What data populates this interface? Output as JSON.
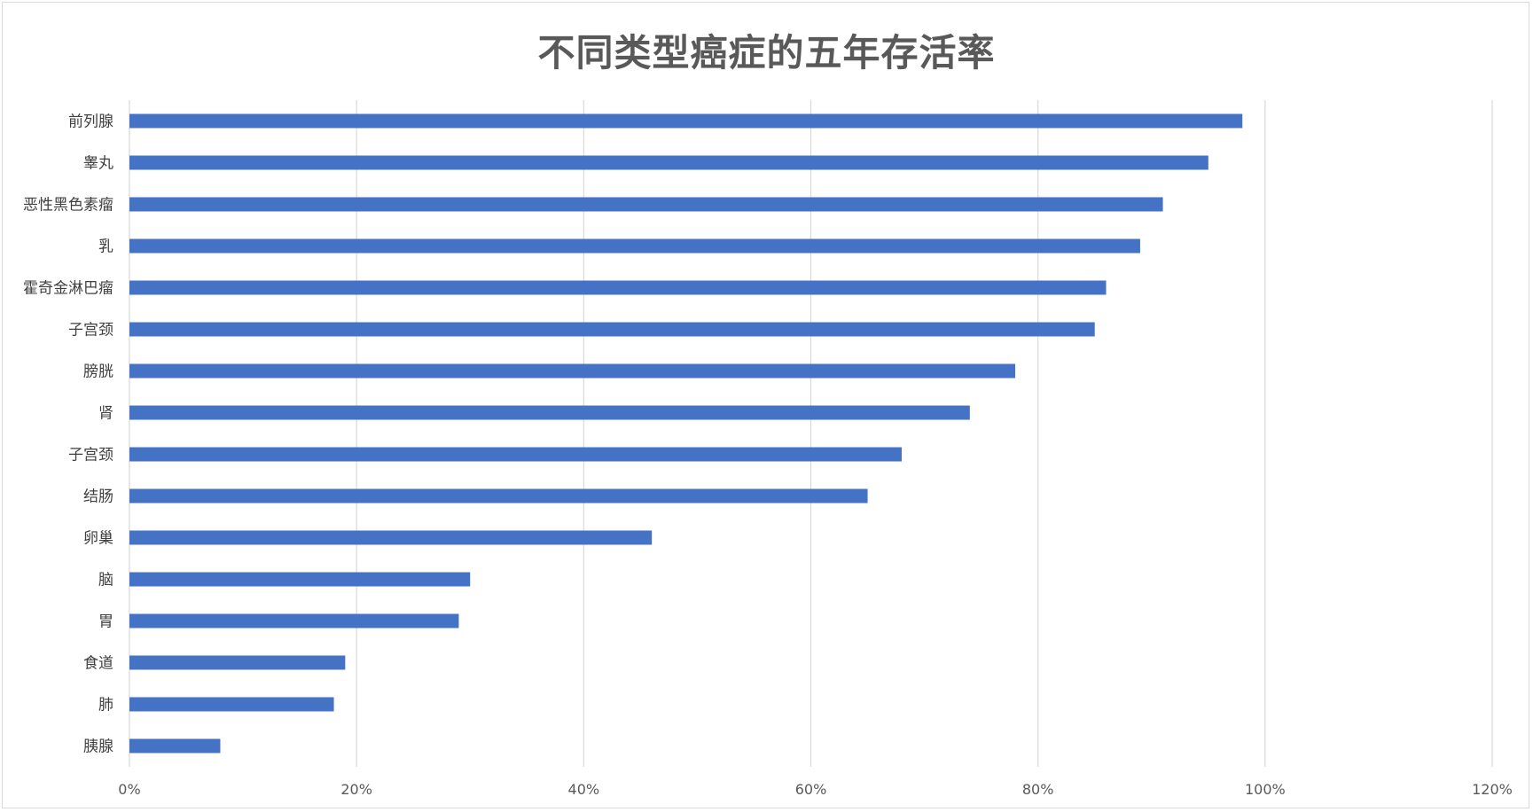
{
  "chart_data": {
    "type": "bar",
    "orientation": "horizontal",
    "title": "不同类型癌症的五年存活率",
    "categories": [
      "前列腺",
      "睾丸",
      "恶性黑色素瘤",
      "乳",
      "霍奇金淋巴瘤",
      "子宫颈",
      "膀胱",
      "肾",
      "子宫颈",
      "结肠",
      "卵巢",
      "脑",
      "胃",
      "食道",
      "肺",
      "胰腺"
    ],
    "series": [
      {
        "values": [
          0.98,
          0.95,
          0.91,
          0.89,
          0.86,
          0.85,
          0.78,
          0.74,
          0.68,
          0.65,
          0.46,
          0.3,
          0.29,
          0.19,
          0.18,
          0.08
        ]
      }
    ],
    "x_ticks": [
      "0%",
      "20%",
      "40%",
      "60%",
      "80%",
      "100%",
      "120%"
    ],
    "xlim": [
      0,
      1.2
    ],
    "grid": true,
    "legend": "none",
    "bar_color": "#4472c4",
    "grid_color": "#d9d9d9"
  }
}
